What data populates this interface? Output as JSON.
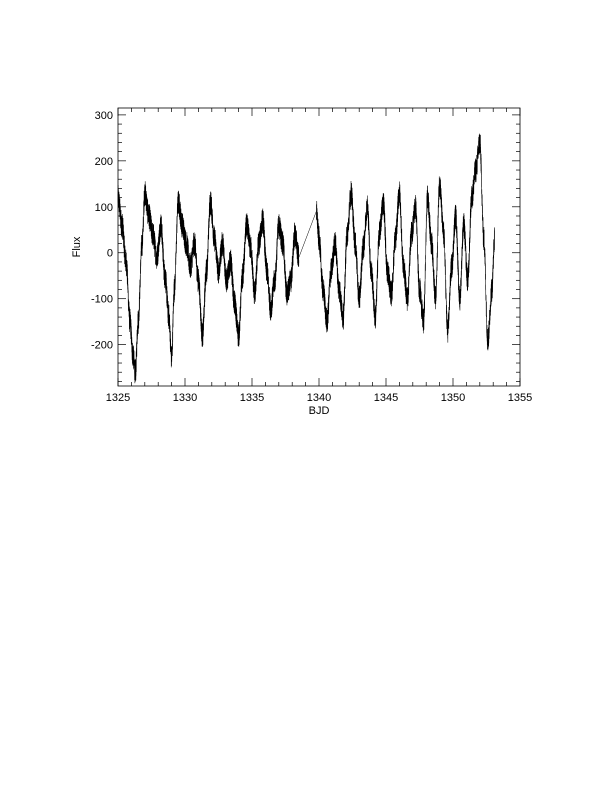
{
  "chart_data": {
    "type": "line",
    "title": "",
    "xlabel": "BJD",
    "ylabel": "Flux",
    "xlim": [
      1325,
      1355
    ],
    "ylim": [
      -290,
      315
    ],
    "xticks": [
      1325,
      1330,
      1335,
      1340,
      1345,
      1350,
      1355
    ],
    "yticks": [
      -200,
      -100,
      0,
      100,
      200,
      300
    ],
    "grid": false,
    "legend": "none",
    "line_color": "#000000",
    "scatter_amplitude": 28,
    "series": [
      {
        "x": [
          1325.0,
          1325.3,
          1325.6,
          1325.9,
          1326.1,
          1326.3,
          1326.5,
          1326.8,
          1327.0,
          1327.3,
          1327.6,
          1327.9,
          1328.2,
          1328.5,
          1328.8,
          1329.0,
          1329.2,
          1329.5,
          1329.8,
          1330.1,
          1330.4,
          1330.7,
          1331.0,
          1331.3,
          1331.6,
          1331.9,
          1332.2,
          1332.5,
          1332.8,
          1333.1,
          1333.4,
          1333.7,
          1334.0,
          1334.3,
          1334.6,
          1334.9,
          1335.2,
          1335.5,
          1335.8,
          1336.1,
          1336.4,
          1336.7,
          1337.0,
          1337.3,
          1337.6,
          1337.9,
          1338.2,
          1338.5,
          1339.8,
          1340.0,
          1340.3,
          1340.6,
          1340.9,
          1341.2,
          1341.5,
          1341.8,
          1342.1,
          1342.4,
          1342.7,
          1343.0,
          1343.3,
          1343.6,
          1343.9,
          1344.2,
          1344.5,
          1344.8,
          1345.1,
          1345.4,
          1345.7,
          1346.0,
          1346.3,
          1346.6,
          1346.9,
          1347.2,
          1347.5,
          1347.8,
          1348.1,
          1348.4,
          1348.7,
          1349.0,
          1349.3,
          1349.6,
          1349.9,
          1350.2,
          1350.5,
          1350.8,
          1351.1,
          1351.4,
          1351.7,
          1352.0,
          1352.3,
          1352.6,
          1352.9,
          1353.1
        ],
        "y": [
          120,
          60,
          -20,
          -150,
          -220,
          -260,
          -150,
          20,
          130,
          80,
          40,
          -10,
          60,
          -50,
          -140,
          -230,
          -80,
          110,
          60,
          20,
          -30,
          20,
          -60,
          -180,
          -40,
          110,
          30,
          -40,
          20,
          -60,
          -20,
          -110,
          -180,
          -50,
          60,
          10,
          -90,
          20,
          70,
          -40,
          -120,
          -60,
          60,
          20,
          -90,
          -60,
          40,
          -10,
          90,
          30,
          -80,
          -150,
          -40,
          20,
          -80,
          -140,
          40,
          130,
          20,
          -100,
          10,
          100,
          -40,
          -140,
          40,
          110,
          -40,
          -90,
          30,
          130,
          -30,
          -100,
          40,
          100,
          -80,
          -150,
          120,
          20,
          -100,
          150,
          40,
          -170,
          -30,
          80,
          -100,
          60,
          -60,
          120,
          180,
          240,
          30,
          -190,
          -80,
          30
        ]
      }
    ]
  }
}
